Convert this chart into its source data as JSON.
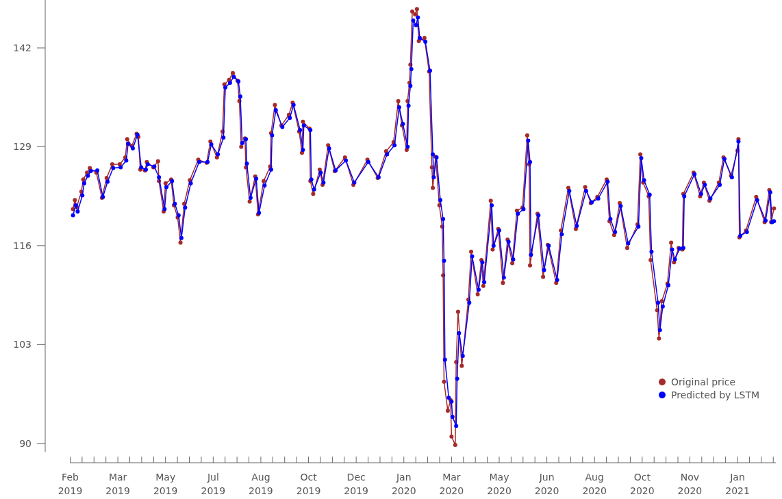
{
  "chart_data": {
    "type": "line",
    "marker": "circle",
    "line_style": "solid",
    "legend": "bottom right",
    "grid": false,
    "xlim": [
      "2019-02-01",
      "2021-02-25"
    ],
    "xticks": [
      {
        "value": "2019-02-01",
        "label": "Feb 2019"
      },
      {
        "value": "2019-02-13T18:00",
        "label": null
      },
      {
        "value": "2019-02-26T12:00",
        "label": null
      },
      {
        "value": "2019-03-11T06:00",
        "label": null
      },
      {
        "value": "2019-03-24",
        "label": "Mar 2019"
      },
      {
        "value": "2019-04-05T18:00",
        "label": null
      },
      {
        "value": "2019-04-18T12:00",
        "label": null
      },
      {
        "value": "2019-05-01T06:00",
        "label": null
      },
      {
        "value": "2019-05-14",
        "label": "May 2019"
      },
      {
        "value": "2019-05-26T18:00",
        "label": null
      },
      {
        "value": "2019-06-08T12:00",
        "label": null
      },
      {
        "value": "2019-06-21T06:00",
        "label": null
      },
      {
        "value": "2019-07-04",
        "label": "Jul 2019"
      },
      {
        "value": "2019-07-16T18:00",
        "label": null
      },
      {
        "value": "2019-07-29T12:00",
        "label": null
      },
      {
        "value": "2019-08-11T06:00",
        "label": null
      },
      {
        "value": "2019-08-24",
        "label": "Aug 2019"
      },
      {
        "value": "2019-09-05T18:00",
        "label": null
      },
      {
        "value": "2019-09-18T12:00",
        "label": null
      },
      {
        "value": "2019-10-01T06:00",
        "label": null
      },
      {
        "value": "2019-10-14",
        "label": "Oct 2019"
      },
      {
        "value": "2019-10-26T18:00",
        "label": null
      },
      {
        "value": "2019-11-08T12:00",
        "label": null
      },
      {
        "value": "2019-11-21T06:00",
        "label": null
      },
      {
        "value": "2019-12-04",
        "label": "Dec 2019"
      },
      {
        "value": "2019-12-16T18:00",
        "label": null
      },
      {
        "value": "2019-12-29T12:00",
        "label": null
      },
      {
        "value": "2020-01-11T06:00",
        "label": null
      },
      {
        "value": "2020-01-24",
        "label": "Jan 2020"
      },
      {
        "value": "2020-02-05T18:00",
        "label": null
      },
      {
        "value": "2020-02-18T12:00",
        "label": null
      },
      {
        "value": "2020-03-02T06:00",
        "label": null
      },
      {
        "value": "2020-03-15",
        "label": "Mar 2020"
      },
      {
        "value": "2020-03-27T18:00",
        "label": null
      },
      {
        "value": "2020-04-09T12:00",
        "label": null
      },
      {
        "value": "2020-04-22T06:00",
        "label": null
      },
      {
        "value": "2020-05-05",
        "label": "May 2020"
      },
      {
        "value": "2020-05-17T18:00",
        "label": null
      },
      {
        "value": "2020-05-30T12:00",
        "label": null
      },
      {
        "value": "2020-06-12T06:00",
        "label": null
      },
      {
        "value": "2020-06-25",
        "label": "Jun 2020"
      },
      {
        "value": "2020-07-07T18:00",
        "label": null
      },
      {
        "value": "2020-07-20T12:00",
        "label": null
      },
      {
        "value": "2020-08-02T06:00",
        "label": null
      },
      {
        "value": "2020-08-15",
        "label": "Aug 2020"
      },
      {
        "value": "2020-08-27T18:00",
        "label": null
      },
      {
        "value": "2020-09-09T12:00",
        "label": null
      },
      {
        "value": "2020-09-22T06:00",
        "label": null
      },
      {
        "value": "2020-10-05",
        "label": "Oct 2020"
      },
      {
        "value": "2020-10-17T18:00",
        "label": null
      },
      {
        "value": "2020-10-30T12:00",
        "label": null
      },
      {
        "value": "2020-11-12T06:00",
        "label": null
      },
      {
        "value": "2020-11-25",
        "label": "Nov 2020"
      },
      {
        "value": "2020-12-07T18:00",
        "label": null
      },
      {
        "value": "2020-12-20T12:00",
        "label": null
      },
      {
        "value": "2021-01-02T06:00",
        "label": null
      },
      {
        "value": "2021-01-15",
        "label": "Jan 2021"
      },
      {
        "value": "2021-01-27T18:00",
        "label": null
      },
      {
        "value": "2021-02-09T12:00",
        "label": null
      },
      {
        "value": "2021-02-22T06:00",
        "label": null
      }
    ],
    "ylim": [
      88.9,
      148.3
    ],
    "yticks": [
      90,
      103,
      116,
      129,
      142
    ],
    "series": [
      {
        "name": "Original price",
        "color": "#a52a2a",
        "x": [
          "2019-02-04",
          "2019-02-06",
          "2019-02-08",
          "2019-02-13",
          "2019-02-15",
          "2019-02-19",
          "2019-02-22",
          "2019-03-01",
          "2019-03-07",
          "2019-03-12",
          "2019-03-18",
          "2019-03-26",
          "2019-04-01",
          "2019-04-03",
          "2019-04-08",
          "2019-04-13",
          "2019-04-15",
          "2019-04-17",
          "2019-04-22",
          "2019-04-24",
          "2019-05-01",
          "2019-05-06",
          "2019-05-07",
          "2019-05-12",
          "2019-05-14",
          "2019-05-20",
          "2019-05-23",
          "2019-05-27",
          "2019-05-30",
          "2019-06-03",
          "2019-06-09",
          "2019-06-18",
          "2019-06-27",
          "2019-07-01",
          "2019-07-08",
          "2019-07-14",
          "2019-07-16",
          "2019-07-21",
          "2019-07-25",
          "2019-07-30",
          "2019-08-01",
          "2019-08-03",
          "2019-08-07",
          "2019-08-08",
          "2019-08-12",
          "2019-08-18",
          "2019-08-21",
          "2019-08-27",
          "2019-09-03",
          "2019-09-04",
          "2019-09-08",
          "2019-09-15",
          "2019-09-23",
          "2019-09-27",
          "2019-10-04",
          "2019-10-07",
          "2019-10-08",
          "2019-10-15",
          "2019-10-16",
          "2019-10-19",
          "2019-10-26",
          "2019-10-29",
          "2019-11-04",
          "2019-11-11",
          "2019-11-22",
          "2019-12-01",
          "2019-12-16",
          "2019-12-27",
          "2020-01-05",
          "2020-01-13",
          "2020-01-18",
          "2020-01-22",
          "2020-01-27",
          "2020-01-28",
          "2020-01-30",
          "2020-01-31",
          "2020-02-02",
          "2020-02-05",
          "2020-02-07",
          "2020-02-09",
          "2020-02-15",
          "2020-02-20",
          "2020-02-23",
          "2020-02-24",
          "2020-02-27",
          "2020-03-02",
          "2020-03-05",
          "2020-03-06",
          "2020-03-07",
          "2020-03-11",
          "2020-03-14",
          "2020-03-15",
          "2020-03-19",
          "2020-03-20",
          "2020-03-22",
          "2020-03-26",
          "2020-04-02",
          "2020-04-05",
          "2020-04-12",
          "2020-04-16",
          "2020-04-18",
          "2020-04-26",
          "2020-04-28",
          "2020-05-04",
          "2020-05-09",
          "2020-05-14",
          "2020-05-19",
          "2020-05-24",
          "2020-05-30",
          "2020-06-04",
          "2020-06-06",
          "2020-06-07",
          "2020-06-15",
          "2020-06-21",
          "2020-06-26",
          "2020-07-05",
          "2020-07-10",
          "2020-07-18",
          "2020-07-26",
          "2020-08-05",
          "2020-08-11",
          "2020-08-18",
          "2020-08-28",
          "2020-08-31",
          "2020-09-05",
          "2020-09-11",
          "2020-09-19",
          "2020-09-30",
          "2020-10-03",
          "2020-10-06",
          "2020-10-12",
          "2020-10-14",
          "2020-10-21",
          "2020-10-23",
          "2020-10-26",
          "2020-11-01",
          "2020-11-05",
          "2020-11-08",
          "2020-11-13",
          "2020-11-17",
          "2020-11-18",
          "2020-11-29",
          "2020-12-06",
          "2020-12-10",
          "2020-12-16",
          "2020-12-26",
          "2020-12-31",
          "2021-01-08",
          "2021-01-15",
          "2021-01-16",
          "2021-01-17",
          "2021-01-24",
          "2021-02-04",
          "2021-02-13",
          "2021-02-18",
          "2021-02-20",
          "2021-02-23"
        ],
        "values": [
          120.8,
          122.0,
          121.1,
          123.1,
          124.7,
          125.6,
          126.2,
          125.6,
          122.3,
          124.9,
          126.7,
          126.7,
          127.6,
          130.0,
          129.1,
          130.7,
          130.3,
          126.0,
          125.9,
          127.0,
          126.3,
          127.1,
          124.5,
          120.5,
          124.2,
          124.7,
          121.3,
          119.7,
          116.4,
          121.5,
          124.6,
          127.3,
          126.9,
          129.7,
          127.6,
          131.0,
          137.2,
          137.8,
          138.7,
          137.7,
          135.0,
          129.0,
          130.1,
          126.3,
          121.8,
          125.1,
          120.1,
          124.5,
          126.4,
          130.8,
          134.5,
          131.8,
          133.2,
          134.8,
          131.0,
          128.2,
          132.3,
          131.4,
          124.5,
          122.8,
          126.0,
          124.0,
          129.2,
          125.8,
          127.6,
          124.0,
          127.3,
          124.9,
          128.4,
          129.6,
          135.0,
          131.8,
          128.6,
          135.0,
          137.4,
          139.8,
          146.8,
          146.4,
          147.1,
          142.9,
          143.3,
          138.9,
          126.3,
          123.6,
          127.7,
          121.3,
          118.5,
          112.1,
          98.1,
          94.3,
          95.7,
          90.9,
          89.8,
          100.7,
          107.3,
          100.2,
          108.9,
          115.2,
          109.6,
          114.1,
          110.7,
          121.9,
          115.5,
          118.2,
          111.1,
          116.8,
          113.7,
          120.6,
          121.0,
          130.5,
          126.7,
          113.4,
          120.2,
          111.9,
          116.1,
          111.1,
          118.0,
          123.6,
          118.2,
          123.7,
          121.6,
          122.4,
          124.7,
          119.2,
          117.4,
          121.6,
          115.7,
          118.8,
          128.0,
          124.3,
          122.5,
          114.1,
          107.5,
          103.8,
          108.7,
          111.0,
          116.4,
          113.8,
          115.7,
          115.5,
          122.8,
          125.6,
          122.5,
          124.3,
          121.9,
          124.3,
          127.6,
          125.2,
          128.5,
          130.0,
          117.1,
          118.0,
          122.4,
          119.1,
          123.3,
          119.1,
          120.9
        ]
      },
      {
        "name": "Predicted by LSTM",
        "color": "#0000ff",
        "x": [
          "2019-02-04",
          "2019-02-07",
          "2019-02-09",
          "2019-02-14",
          "2019-02-16",
          "2019-02-20",
          "2019-02-23",
          "2019-03-02",
          "2019-03-08",
          "2019-03-13",
          "2019-03-19",
          "2019-03-27",
          "2019-04-02",
          "2019-04-04",
          "2019-04-09",
          "2019-04-14",
          "2019-04-18",
          "2019-04-23",
          "2019-04-25",
          "2019-05-02",
          "2019-05-07",
          "2019-05-13",
          "2019-05-15",
          "2019-05-21",
          "2019-05-24",
          "2019-05-28",
          "2019-05-31",
          "2019-06-04",
          "2019-06-10",
          "2019-06-19",
          "2019-06-28",
          "2019-07-02",
          "2019-07-09",
          "2019-07-15",
          "2019-07-17",
          "2019-07-22",
          "2019-07-26",
          "2019-07-31",
          "2019-08-02",
          "2019-08-04",
          "2019-08-08",
          "2019-08-09",
          "2019-08-13",
          "2019-08-19",
          "2019-08-22",
          "2019-08-28",
          "2019-09-04",
          "2019-09-05",
          "2019-09-09",
          "2019-09-16",
          "2019-09-24",
          "2019-09-28",
          "2019-10-05",
          "2019-10-08",
          "2019-10-09",
          "2019-10-16",
          "2019-10-17",
          "2019-10-20",
          "2019-10-27",
          "2019-10-30",
          "2019-11-05",
          "2019-11-12",
          "2019-11-23",
          "2019-12-02",
          "2019-12-17",
          "2019-12-28",
          "2020-01-06",
          "2020-01-14",
          "2020-01-19",
          "2020-01-23",
          "2020-01-28",
          "2020-01-29",
          "2020-01-31",
          "2020-02-01",
          "2020-02-03",
          "2020-02-06",
          "2020-02-08",
          "2020-02-10",
          "2020-02-16",
          "2020-02-21",
          "2020-02-24",
          "2020-02-25",
          "2020-02-28",
          "2020-03-03",
          "2020-03-06",
          "2020-03-07",
          "2020-03-08",
          "2020-03-12",
          "2020-03-15",
          "2020-03-16",
          "2020-03-20",
          "2020-03-21",
          "2020-03-23",
          "2020-03-27",
          "2020-04-03",
          "2020-04-06",
          "2020-04-13",
          "2020-04-17",
          "2020-04-19",
          "2020-04-27",
          "2020-04-29",
          "2020-05-05",
          "2020-05-10",
          "2020-05-15",
          "2020-05-20",
          "2020-05-25",
          "2020-05-31",
          "2020-06-05",
          "2020-06-07",
          "2020-06-08",
          "2020-06-16",
          "2020-06-22",
          "2020-06-27",
          "2020-07-06",
          "2020-07-11",
          "2020-07-19",
          "2020-07-27",
          "2020-08-06",
          "2020-08-12",
          "2020-08-19",
          "2020-08-29",
          "2020-09-01",
          "2020-09-06",
          "2020-09-12",
          "2020-09-20",
          "2020-10-01",
          "2020-10-04",
          "2020-10-07",
          "2020-10-13",
          "2020-10-15",
          "2020-10-22",
          "2020-10-24",
          "2020-10-27",
          "2020-11-02",
          "2020-11-06",
          "2020-11-09",
          "2020-11-14",
          "2020-11-18",
          "2020-11-19",
          "2020-11-30",
          "2020-12-07",
          "2020-12-11",
          "2020-12-17",
          "2020-12-27",
          "2021-01-01",
          "2021-01-09",
          "2021-01-16",
          "2021-01-18",
          "2021-01-25",
          "2021-02-05",
          "2021-02-14",
          "2021-02-19",
          "2021-02-21",
          "2021-02-23"
        ],
        "values": [
          120.0,
          121.3,
          120.5,
          122.6,
          124.2,
          125.2,
          125.8,
          125.9,
          122.4,
          124.4,
          126.2,
          126.3,
          127.2,
          129.4,
          128.8,
          130.6,
          126.3,
          126.0,
          126.7,
          126.4,
          125.0,
          120.8,
          123.7,
          124.5,
          121.5,
          120.0,
          117.0,
          121.0,
          124.2,
          127.0,
          127.0,
          129.3,
          128.0,
          130.2,
          136.8,
          137.4,
          138.2,
          137.6,
          135.6,
          129.5,
          130.0,
          126.8,
          122.3,
          124.8,
          120.3,
          123.9,
          126.0,
          130.5,
          133.8,
          131.6,
          132.8,
          134.5,
          131.2,
          128.6,
          131.8,
          131.2,
          124.7,
          123.4,
          125.6,
          124.3,
          128.8,
          125.9,
          127.2,
          124.3,
          127.0,
          125.0,
          128.0,
          129.2,
          134.2,
          132.0,
          129.0,
          134.4,
          137.0,
          139.2,
          145.6,
          145.0,
          146.0,
          143.3,
          142.8,
          139.0,
          128.0,
          125.0,
          127.6,
          122.0,
          119.5,
          114.0,
          101.0,
          96.0,
          95.5,
          93.5,
          92.3,
          98.5,
          104.5,
          101.5,
          108.5,
          114.6,
          110.2,
          113.8,
          111.2,
          121.3,
          116.0,
          118.0,
          111.8,
          116.5,
          114.2,
          120.2,
          120.8,
          129.8,
          127.0,
          114.8,
          120.0,
          112.8,
          116.0,
          111.5,
          117.5,
          123.2,
          118.6,
          123.2,
          121.7,
          122.2,
          124.4,
          119.5,
          117.8,
          121.2,
          116.3,
          118.5,
          127.5,
          124.6,
          122.7,
          115.2,
          108.5,
          104.9,
          108.0,
          110.8,
          115.5,
          114.2,
          115.6,
          115.7,
          122.5,
          125.4,
          122.8,
          124.0,
          122.2,
          124.0,
          127.4,
          125.0,
          129.7,
          117.3,
          117.8,
          122.0,
          119.3,
          123.0,
          119.1,
          119.2
        ]
      }
    ]
  }
}
